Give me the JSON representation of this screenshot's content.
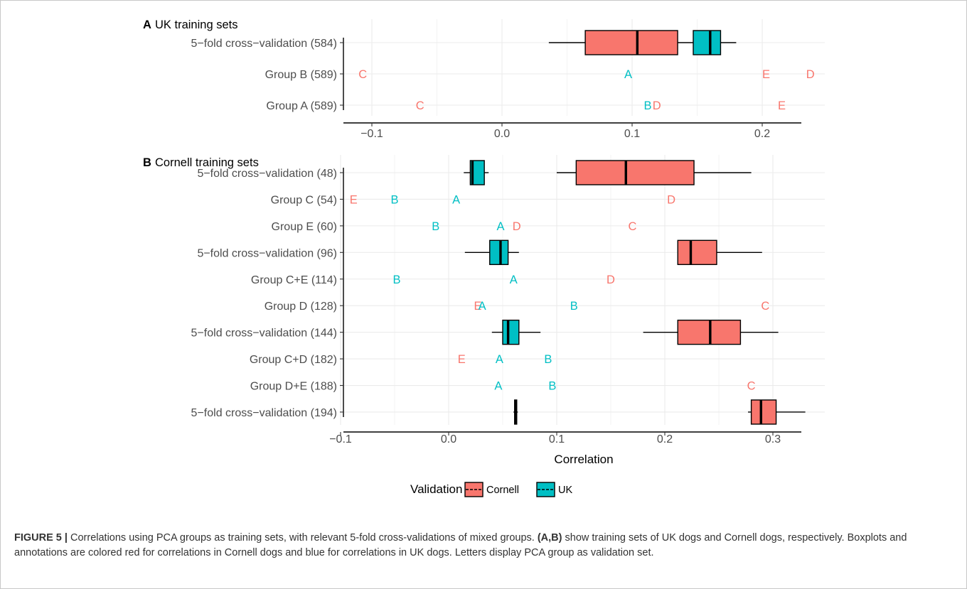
{
  "colors": {
    "Cornell": "#F8766D",
    "UK": "#00BFC4",
    "grid": "#EBEBEB",
    "text": "#4D4D4D"
  },
  "chart_data": [
    {
      "type": "boxplot",
      "panel_label": "A",
      "title": "UK training sets",
      "xlim": [
        -0.12,
        0.25
      ],
      "xticks": [
        -0.1,
        0.0,
        0.1,
        0.2
      ],
      "xtick_labels": [
        "−0.1",
        "0.0",
        "0.1",
        "0.2"
      ],
      "grid": true,
      "rows": [
        {
          "label": "5−fold cross−validation (584)",
          "boxes": [
            {
              "series": "Cornell",
              "min": 0.036,
              "q1": 0.064,
              "median": 0.104,
              "q3": 0.135,
              "max": 0.147
            },
            {
              "series": "UK",
              "min": 0.147,
              "q1": 0.147,
              "median": 0.16,
              "q3": 0.168,
              "max": 0.18
            }
          ],
          "letters": []
        },
        {
          "label": "Group B (589)",
          "boxes": [],
          "letters": [
            {
              "text": "C",
              "series": "Cornell",
              "x": -0.107
            },
            {
              "text": "A",
              "series": "UK",
              "x": 0.097
            },
            {
              "text": "E",
              "series": "Cornell",
              "x": 0.203
            },
            {
              "text": "D",
              "series": "Cornell",
              "x": 0.237
            }
          ]
        },
        {
          "label": "Group A (589)",
          "boxes": [],
          "letters": [
            {
              "text": "C",
              "series": "Cornell",
              "x": -0.063
            },
            {
              "text": "B",
              "series": "UK",
              "x": 0.112
            },
            {
              "text": "D",
              "series": "Cornell",
              "x": 0.119
            },
            {
              "text": "E",
              "series": "Cornell",
              "x": 0.215
            }
          ]
        }
      ]
    },
    {
      "type": "boxplot",
      "panel_label": "B",
      "title": "Cornell training sets",
      "xlabel": "Correlation",
      "xlim": [
        -0.1,
        0.34
      ],
      "xticks": [
        -0.1,
        0.0,
        0.1,
        0.2,
        0.3
      ],
      "xtick_labels": [
        "−0.1",
        "0.0",
        "0.1",
        "0.2",
        "0.3"
      ],
      "grid": true,
      "rows": [
        {
          "label": "5−fold cross−validation (48)",
          "boxes": [
            {
              "series": "UK",
              "min": 0.014,
              "q1": 0.02,
              "median": 0.022,
              "q3": 0.033,
              "max": 0.037
            },
            {
              "series": "Cornell",
              "min": 0.1,
              "q1": 0.118,
              "median": 0.164,
              "q3": 0.227,
              "max": 0.28
            }
          ],
          "letters": []
        },
        {
          "label": "Group C (54)",
          "boxes": [],
          "letters": [
            {
              "text": "E",
              "series": "Cornell",
              "x": -0.088
            },
            {
              "text": "B",
              "series": "UK",
              "x": -0.05
            },
            {
              "text": "A",
              "series": "UK",
              "x": 0.007
            },
            {
              "text": "D",
              "series": "Cornell",
              "x": 0.206
            }
          ]
        },
        {
          "label": "Group E (60)",
          "boxes": [],
          "letters": [
            {
              "text": "B",
              "series": "UK",
              "x": -0.012
            },
            {
              "text": "A",
              "series": "UK",
              "x": 0.048
            },
            {
              "text": "D",
              "series": "Cornell",
              "x": 0.063
            },
            {
              "text": "C",
              "series": "Cornell",
              "x": 0.17
            }
          ]
        },
        {
          "label": "5−fold cross−validation (96)",
          "boxes": [
            {
              "series": "UK",
              "min": 0.015,
              "q1": 0.038,
              "median": 0.048,
              "q3": 0.055,
              "max": 0.065
            },
            {
              "series": "Cornell",
              "min": 0.212,
              "q1": 0.212,
              "median": 0.224,
              "q3": 0.248,
              "max": 0.29
            }
          ],
          "letters": []
        },
        {
          "label": "Group C+E (114)",
          "boxes": [],
          "letters": [
            {
              "text": "B",
              "series": "UK",
              "x": -0.048
            },
            {
              "text": "A",
              "series": "UK",
              "x": 0.06
            },
            {
              "text": "D",
              "series": "Cornell",
              "x": 0.15
            }
          ]
        },
        {
          "label": "Group D (128)",
          "boxes": [],
          "letters": [
            {
              "text": "E",
              "series": "Cornell",
              "x": 0.027
            },
            {
              "text": "A",
              "series": "UK",
              "x": 0.031
            },
            {
              "text": "B",
              "series": "UK",
              "x": 0.116
            },
            {
              "text": "C",
              "series": "Cornell",
              "x": 0.293
            }
          ]
        },
        {
          "label": "5−fold cross−validation (144)",
          "boxes": [
            {
              "series": "UK",
              "min": 0.04,
              "q1": 0.05,
              "median": 0.055,
              "q3": 0.065,
              "max": 0.085
            },
            {
              "series": "Cornell",
              "min": 0.18,
              "q1": 0.212,
              "median": 0.242,
              "q3": 0.27,
              "max": 0.305
            }
          ],
          "letters": []
        },
        {
          "label": "Group C+D (182)",
          "boxes": [],
          "letters": [
            {
              "text": "E",
              "series": "Cornell",
              "x": 0.012
            },
            {
              "text": "A",
              "series": "UK",
              "x": 0.047
            },
            {
              "text": "B",
              "series": "UK",
              "x": 0.092
            }
          ]
        },
        {
          "label": "Group D+E (188)",
          "boxes": [],
          "letters": [
            {
              "text": "A",
              "series": "UK",
              "x": 0.046
            },
            {
              "text": "B",
              "series": "UK",
              "x": 0.096
            },
            {
              "text": "C",
              "series": "Cornell",
              "x": 0.28
            }
          ]
        },
        {
          "label": "5−fold cross−validation (194)",
          "boxes": [
            {
              "series": "UK",
              "min": 0.06,
              "q1": 0.061,
              "median": 0.062,
              "q3": 0.063,
              "max": 0.064
            },
            {
              "series": "Cornell",
              "min": 0.277,
              "q1": 0.28,
              "median": 0.289,
              "q3": 0.303,
              "max": 0.33
            }
          ],
          "letters": []
        }
      ]
    }
  ],
  "legend": {
    "title": "Validation",
    "items": [
      "Cornell",
      "UK"
    ],
    "placement": "bottom"
  },
  "caption": {
    "label": "FIGURE 5 |",
    "text_1": " Correlations using PCA groups as training sets, with relevant 5-fold cross-validations of mixed groups. ",
    "ref": "(A,B)",
    "text_2": " show training sets of UK dogs and Cornell dogs, respectively. Boxplots and annotations are colored red for correlations in Cornell dogs and blue for correlations in UK dogs. Letters display PCA group as validation set."
  }
}
